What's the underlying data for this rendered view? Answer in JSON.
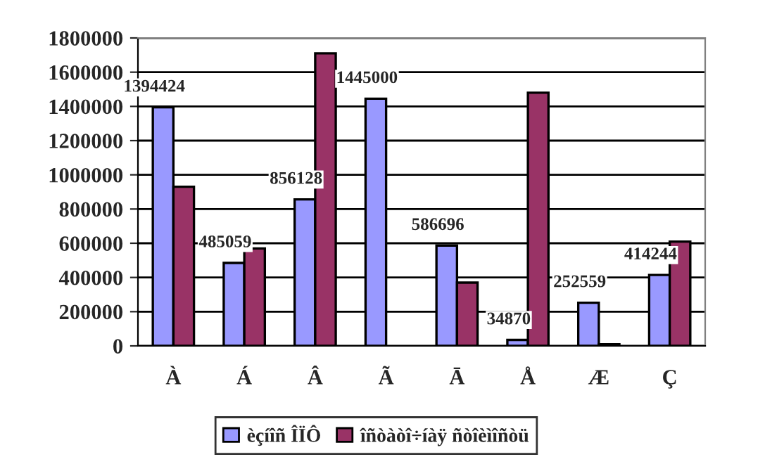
{
  "chart_data": {
    "type": "bar",
    "categories": [
      "À",
      "Á",
      "Â",
      "Ã",
      "Ā",
      "Å",
      "Æ",
      "Ç"
    ],
    "series": [
      {
        "name": "èçíîñ ÎÏÔ",
        "color": "#9999ff",
        "values": [
          1394424,
          485059,
          856128,
          1445000,
          586696,
          34870,
          252559,
          414244
        ],
        "value_labels": [
          "1394424",
          "485059",
          "856128",
          "1445000",
          "586696",
          "34870",
          "252559",
          "414244"
        ]
      },
      {
        "name": "îñòàòî÷íàÿ ñòîèìîñòü",
        "color": "#993366",
        "values": [
          930000,
          570000,
          1710000,
          null,
          370000,
          1480000,
          10000,
          610000
        ]
      }
    ],
    "ylim": [
      0,
      1800000
    ],
    "yticks": [
      0,
      200000,
      400000,
      600000,
      800000,
      1000000,
      1200000,
      1400000,
      1600000,
      1800000
    ],
    "grid": "y",
    "legend": "bottom"
  }
}
